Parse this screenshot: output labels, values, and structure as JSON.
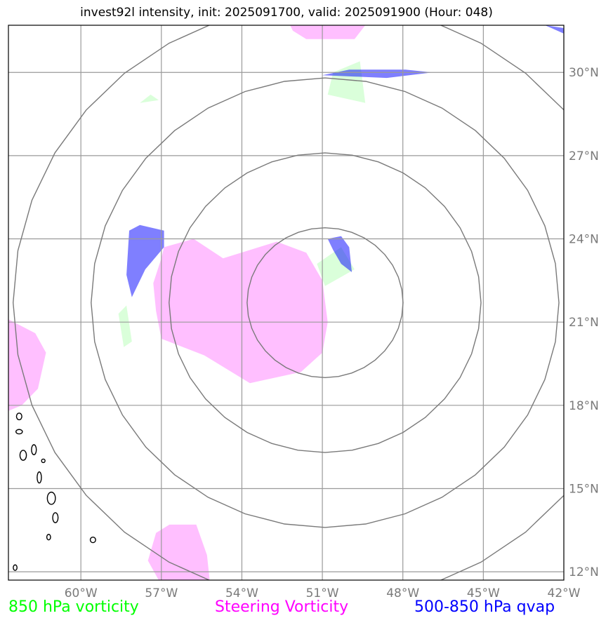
{
  "title": "invest92l intensity, init: 2025091700, valid: 2025091900 (Hour: 048)",
  "map": {
    "lon_range": [
      -62.7,
      -42.0
    ],
    "lat_range": [
      11.7,
      31.7
    ],
    "lon_ticks": [
      {
        "value": -60,
        "label": "60°W"
      },
      {
        "value": -57,
        "label": "57°W"
      },
      {
        "value": -54,
        "label": "54°W"
      },
      {
        "value": -51,
        "label": "51°W"
      },
      {
        "value": -48,
        "label": "48°W"
      },
      {
        "value": -45,
        "label": "45°W"
      },
      {
        "value": -42,
        "label": "42°W"
      }
    ],
    "lat_ticks": [
      {
        "value": 30,
        "label": "30°N"
      },
      {
        "value": 27,
        "label": "27°N"
      },
      {
        "value": 24,
        "label": "24°N"
      },
      {
        "value": 21,
        "label": "21°N"
      },
      {
        "value": 18,
        "label": "18°N"
      },
      {
        "value": 15,
        "label": "15°N"
      },
      {
        "value": 12,
        "label": "12°N"
      }
    ],
    "range_rings": {
      "center": {
        "lon": -50.9,
        "lat": 21.7
      },
      "radii_deg_lat": [
        2.7,
        5.4,
        8.1,
        10.8
      ]
    },
    "fields": {
      "steering_vorticity": {
        "color": "#ff66ff",
        "polygons": [
          [
            [
              -52.2,
              31.7
            ],
            [
              -49.4,
              31.7
            ],
            [
              -49.8,
              31.2
            ],
            [
              -51.6,
              31.2
            ],
            [
              -52.1,
              31.5
            ]
          ],
          [
            [
              -56.9,
              23.7
            ],
            [
              -55.8,
              24.0
            ],
            [
              -54.7,
              23.3
            ],
            [
              -53.7,
              23.6
            ],
            [
              -52.7,
              23.9
            ],
            [
              -51.6,
              23.5
            ],
            [
              -51.0,
              22.5
            ],
            [
              -50.8,
              21.0
            ],
            [
              -51.0,
              19.9
            ],
            [
              -51.8,
              19.2
            ],
            [
              -53.7,
              18.8
            ],
            [
              -55.4,
              19.8
            ],
            [
              -57.0,
              20.4
            ],
            [
              -57.2,
              21.4
            ],
            [
              -57.3,
              22.4
            ],
            [
              -57.0,
              23.3
            ]
          ],
          [
            [
              -62.7,
              21.1
            ],
            [
              -61.7,
              20.6
            ],
            [
              -61.3,
              19.9
            ],
            [
              -61.6,
              18.6
            ],
            [
              -62.2,
              18.0
            ],
            [
              -62.7,
              17.8
            ]
          ],
          [
            [
              -57.2,
              13.4
            ],
            [
              -56.7,
              13.7
            ],
            [
              -55.7,
              13.7
            ],
            [
              -55.3,
              12.6
            ],
            [
              -55.2,
              11.7
            ],
            [
              -57.1,
              11.7
            ],
            [
              -57.5,
              12.4
            ]
          ]
        ]
      },
      "vorticity_850": {
        "color": "#33ff33",
        "polygons": [
          [
            [
              -49.6,
              30.4
            ],
            [
              -50.6,
              30.0
            ],
            [
              -50.8,
              29.2
            ],
            [
              -49.4,
              28.9
            ]
          ],
          [
            [
              -57.4,
              29.2
            ],
            [
              -57.1,
              29.0
            ],
            [
              -57.8,
              28.9
            ]
          ],
          [
            [
              -50.3,
              23.7
            ],
            [
              -49.8,
              22.9
            ],
            [
              -50.9,
              22.3
            ],
            [
              -51.2,
              23.1
            ]
          ],
          [
            [
              -58.6,
              21.3
            ],
            [
              -58.3,
              21.6
            ],
            [
              -58.1,
              20.3
            ],
            [
              -58.4,
              20.1
            ]
          ]
        ]
      },
      "qvap_500_850": {
        "color": "#0000ff",
        "polygons": [
          [
            [
              -50.0,
              30.1
            ],
            [
              -47.9,
              30.1
            ],
            [
              -46.9,
              30.0
            ],
            [
              -48.6,
              29.8
            ],
            [
              -51.0,
              29.9
            ]
          ],
          [
            [
              -42.0,
              31.6
            ],
            [
              -42.7,
              31.7
            ],
            [
              -42.0,
              31.4
            ]
          ],
          [
            [
              -57.8,
              24.5
            ],
            [
              -58.2,
              24.3
            ],
            [
              -58.3,
              22.7
            ],
            [
              -58.1,
              21.9
            ],
            [
              -57.6,
              22.9
            ],
            [
              -56.9,
              23.7
            ],
            [
              -56.9,
              24.3
            ]
          ],
          [
            [
              -50.8,
              24.0
            ],
            [
              -50.3,
              24.1
            ],
            [
              -50.0,
              23.7
            ],
            [
              -49.9,
              22.8
            ],
            [
              -50.3,
              23.1
            ],
            [
              -50.6,
              23.6
            ]
          ]
        ]
      }
    },
    "coastline_islands": [
      {
        "lon": -62.3,
        "lat": 17.6,
        "w": 0.1,
        "h": 0.12
      },
      {
        "lon": -62.3,
        "lat": 17.05,
        "w": 0.12,
        "h": 0.08
      },
      {
        "lon": -61.75,
        "lat": 16.4,
        "w": 0.09,
        "h": 0.18
      },
      {
        "lon": -62.15,
        "lat": 16.2,
        "w": 0.12,
        "h": 0.18
      },
      {
        "lon": -61.4,
        "lat": 16.0,
        "w": 0.05,
        "h": 0.06
      },
      {
        "lon": -61.55,
        "lat": 15.4,
        "w": 0.08,
        "h": 0.2
      },
      {
        "lon": -61.1,
        "lat": 14.65,
        "w": 0.15,
        "h": 0.22
      },
      {
        "lon": -60.95,
        "lat": 13.95,
        "w": 0.1,
        "h": 0.18
      },
      {
        "lon": -61.2,
        "lat": 13.25,
        "w": 0.07,
        "h": 0.1
      },
      {
        "lon": -59.55,
        "lat": 13.15,
        "w": 0.1,
        "h": 0.1
      },
      {
        "lon": -62.45,
        "lat": 12.15,
        "w": 0.07,
        "h": 0.1
      }
    ]
  },
  "legend": {
    "vorticity_850": {
      "label": "850 hPa vorticity",
      "color": "#00ff00"
    },
    "steering": {
      "label": "Steering Vorticity",
      "color": "#ff00ff"
    },
    "qvap": {
      "label": "500-850 hPa qvap",
      "color": "#0000ff"
    }
  }
}
